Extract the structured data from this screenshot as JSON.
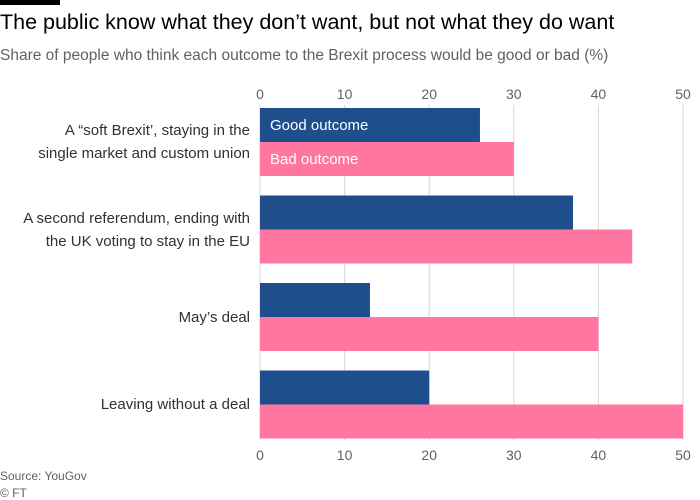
{
  "title": "The public know what they don’t want, but not what they do want",
  "subtitle": "Share of people who think each outcome to the Brexit process would be good or bad (%)",
  "source": "Source: YouGov",
  "copyright": "© FT",
  "colors": {
    "good": "#1f4e8c",
    "bad": "#ff76a0",
    "grid": "#d9d4cf",
    "axis_text": "#66605c"
  },
  "chart_data": {
    "type": "bar",
    "orientation": "horizontal",
    "categories": [
      [
        "A “soft Brexit’, staying in the",
        "single market and custom union"
      ],
      [
        "A second referendum, ending with",
        "the UK voting to stay in the EU"
      ],
      [
        "May’s deal"
      ],
      [
        "Leaving without a deal"
      ]
    ],
    "series": [
      {
        "name": "Good outcome",
        "values": [
          26,
          37,
          13,
          20
        ]
      },
      {
        "name": "Bad outcome",
        "values": [
          30,
          44,
          40,
          50
        ]
      }
    ],
    "xlim": [
      0,
      50
    ],
    "xticks": [
      0,
      10,
      20,
      30,
      40,
      50
    ],
    "legend": "inside first category bars",
    "grid": true
  }
}
